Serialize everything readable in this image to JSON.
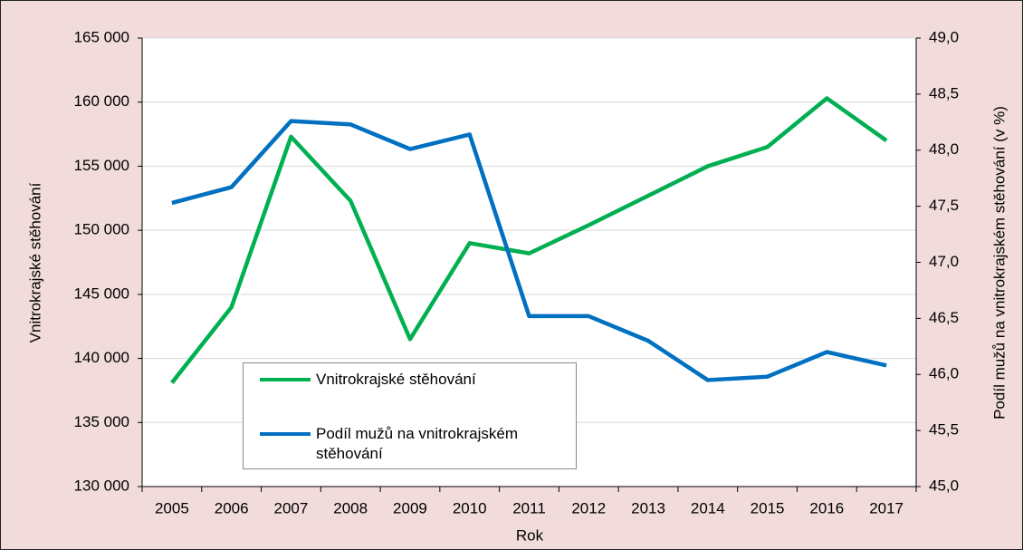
{
  "chart_data": {
    "type": "line",
    "categories": [
      "2005",
      "2006",
      "2007",
      "2008",
      "2009",
      "2010",
      "2011",
      "2012",
      "2013",
      "2014",
      "2015",
      "2016",
      "2017"
    ],
    "x_label": "Rok",
    "y_label": "Vnitrokrajské stěhování",
    "y2_label": "Podíl mužů na vnitrokrajském stěhování (v %)",
    "series": [
      {
        "name": "Vnitrokrajské stěhování",
        "color": "#00b050",
        "values": [
          138100,
          144000,
          157300,
          152300,
          141500,
          149000,
          148200,
          150400,
          152700,
          155000,
          156500,
          160300,
          157000
        ]
      },
      {
        "name": "Podíl mužů na vnitrokrajském stěhování",
        "color": "#0070c0",
        "axis": "y2",
        "values": [
          47.53,
          47.67,
          48.26,
          48.23,
          48.01,
          48.14,
          46.52,
          46.52,
          46.3,
          45.95,
          45.98,
          46.2,
          46.08
        ]
      }
    ],
    "ylim": [
      130000,
      165000
    ],
    "yticks": [
      {
        "value": 130000,
        "label": "130 000"
      },
      {
        "value": 135000,
        "label": "135 000"
      },
      {
        "value": 140000,
        "label": "140 000"
      },
      {
        "value": 145000,
        "label": "145 000"
      },
      {
        "value": 150000,
        "label": "150 000"
      },
      {
        "value": 155000,
        "label": "155 000"
      },
      {
        "value": 160000,
        "label": "160 000"
      },
      {
        "value": 165000,
        "label": "165 000"
      }
    ],
    "y2lim": [
      45,
      49
    ],
    "y2ticks": [
      {
        "value": 45,
        "label": "45,0"
      },
      {
        "value": 45.5,
        "label": "45,5"
      },
      {
        "value": 46,
        "label": "46,0"
      },
      {
        "value": 46.5,
        "label": "46,5"
      },
      {
        "value": 47,
        "label": "47,0"
      },
      {
        "value": 47.5,
        "label": "47,5"
      },
      {
        "value": 48,
        "label": "48,0"
      },
      {
        "value": 48.5,
        "label": "48,5"
      },
      {
        "value": 49,
        "label": "49,0"
      }
    ],
    "grid": true
  }
}
